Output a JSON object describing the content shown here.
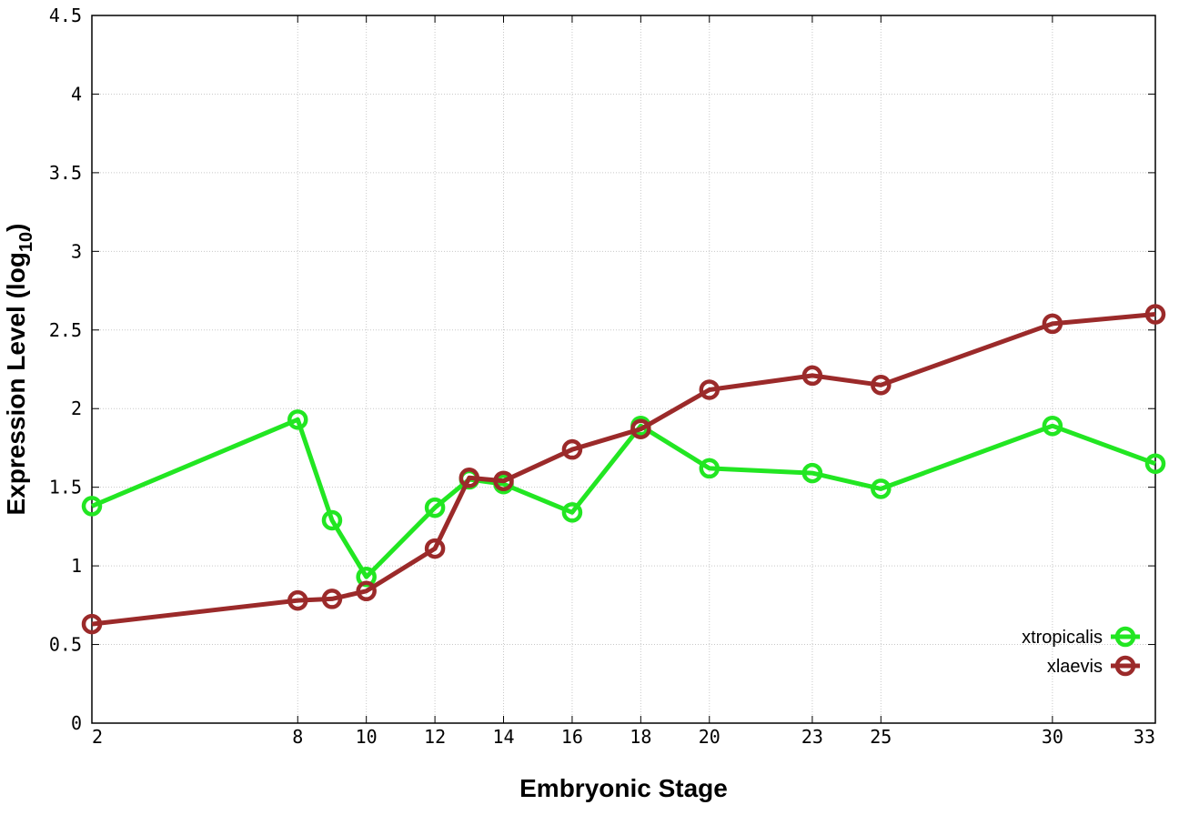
{
  "chart_data": {
    "type": "line",
    "xlabel": "Embryonic Stage",
    "ylabel": "Expression Level (log",
    "ylabel_sub": "10",
    "ylabel_close": ")",
    "xlim": [
      2,
      33
    ],
    "ylim": [
      0,
      4.5
    ],
    "x": [
      2,
      8,
      9,
      10,
      12,
      13,
      14,
      16,
      18,
      20,
      23,
      25,
      30,
      33
    ],
    "xticks": [
      2,
      8,
      10,
      12,
      14,
      16,
      18,
      20,
      23,
      25,
      30,
      33
    ],
    "yticks": [
      0,
      0.5,
      1,
      1.5,
      2,
      2.5,
      3,
      3.5,
      4,
      4.5
    ],
    "ytick_labels": [
      "0",
      "0.5",
      "1",
      "1.5",
      "2",
      "2.5",
      "3",
      "3.5",
      "4",
      "4.5"
    ],
    "grid": true,
    "legend_position": "bottom-right",
    "series": [
      {
        "name": "xtropicalis",
        "color": "#22e622",
        "values": [
          1.38,
          1.93,
          1.29,
          0.93,
          1.37,
          1.55,
          1.52,
          1.34,
          1.89,
          1.62,
          1.59,
          1.49,
          1.89,
          1.65
        ]
      },
      {
        "name": "xlaevis",
        "color": "#9b2a2a",
        "values": [
          0.63,
          0.78,
          0.79,
          0.84,
          1.11,
          1.56,
          1.54,
          1.74,
          1.87,
          2.12,
          2.21,
          2.15,
          2.54,
          2.6
        ]
      }
    ]
  }
}
